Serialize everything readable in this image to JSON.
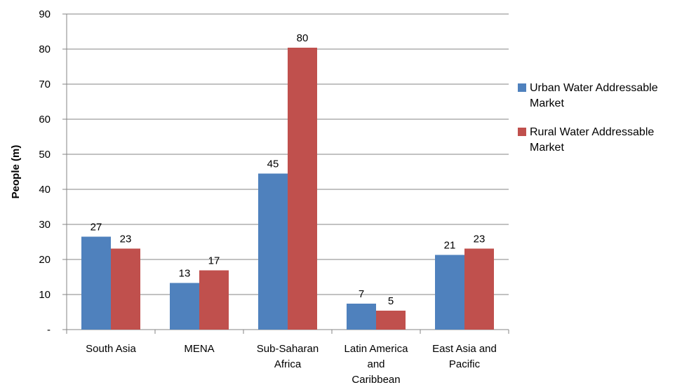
{
  "chart_data": {
    "type": "bar",
    "title": "",
    "xlabel": "",
    "ylabel": "People (m)",
    "ylim": [
      0,
      90
    ],
    "yticks": [
      0,
      10,
      20,
      30,
      40,
      50,
      60,
      70,
      80,
      90
    ],
    "ytick_labels": [
      "-",
      "10",
      "20",
      "30",
      "40",
      "50",
      "60",
      "70",
      "80",
      "90"
    ],
    "grid": true,
    "legend_position": "right",
    "categories": [
      [
        "South Asia"
      ],
      [
        "MENA"
      ],
      [
        "Sub-Saharan",
        "Africa"
      ],
      [
        "Latin America",
        "and",
        "Caribbean"
      ],
      [
        "East Asia and",
        "Pacific"
      ]
    ],
    "series": [
      {
        "name": "Urban Water Addressable Market",
        "legend_lines": [
          "Urban Water Addressable",
          "Market"
        ],
        "color": "#4F81BD",
        "values": [
          26.5,
          13.3,
          44.5,
          7.4,
          21.3
        ],
        "labels": [
          "27",
          "13",
          "45",
          "7",
          "21"
        ]
      },
      {
        "name": "Rural Water Addressable Market",
        "legend_lines": [
          "Rural Water Addressable",
          "Market"
        ],
        "color": "#C0504D",
        "values": [
          23.1,
          16.9,
          80.4,
          5.4,
          23.1
        ],
        "labels": [
          "23",
          "17",
          "80",
          "5",
          "23"
        ]
      }
    ]
  }
}
